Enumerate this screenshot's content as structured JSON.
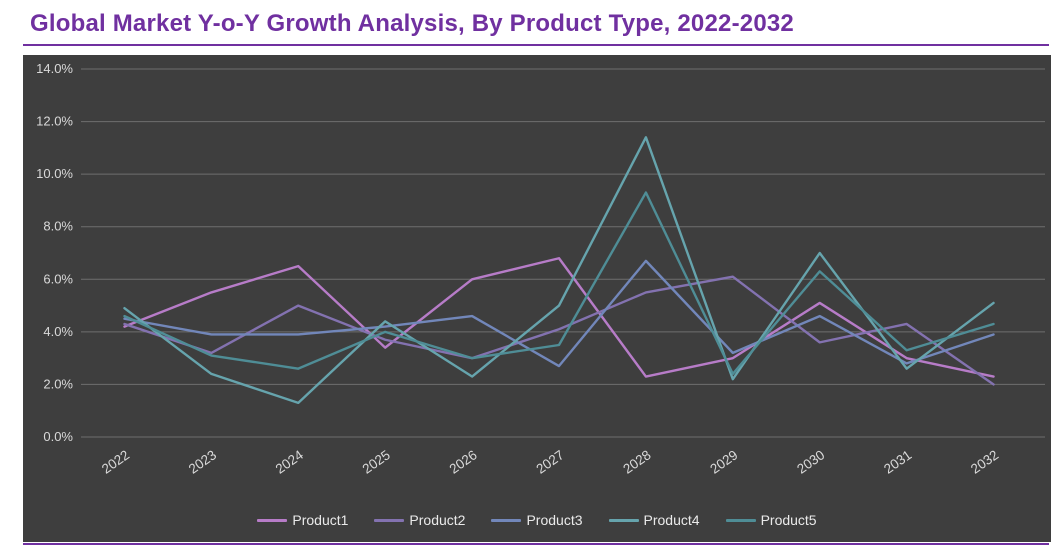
{
  "title": "Global Market Y-o-Y Growth Analysis, By Product Type, 2022-2032",
  "colors": {
    "title": "#7030a0",
    "accent_rule": "#7030a0",
    "panel_bg": "#3e3e3e",
    "grid": "#6e6e6e",
    "axis_text": "#d9d9d9",
    "legend_text": "#eaeaea"
  },
  "chart_data": {
    "type": "line",
    "title": "Global Market Y-o-Y Growth Analysis, By Product Type, 2022-2032",
    "xlabel": "",
    "ylabel": "",
    "categories": [
      "2022",
      "2023",
      "2024",
      "2025",
      "2026",
      "2027",
      "2028",
      "2029",
      "2030",
      "2031",
      "2032"
    ],
    "ylim": [
      0,
      14
    ],
    "ytick_step": 2,
    "ytick_format": "percent_one_decimal",
    "grid": true,
    "legend_position": "bottom",
    "series": [
      {
        "name": "Product1",
        "color": "#b77cc8",
        "values": [
          4.2,
          5.5,
          6.5,
          3.4,
          6.0,
          6.8,
          2.3,
          3.0,
          5.1,
          3.0,
          2.3
        ]
      },
      {
        "name": "Product2",
        "color": "#8372b0",
        "values": [
          4.3,
          3.2,
          5.0,
          3.7,
          3.0,
          4.1,
          5.5,
          6.1,
          3.6,
          4.3,
          2.0
        ]
      },
      {
        "name": "Product3",
        "color": "#7287ba",
        "values": [
          4.5,
          3.9,
          3.9,
          4.2,
          4.6,
          2.7,
          6.7,
          3.2,
          4.6,
          2.8,
          3.9
        ]
      },
      {
        "name": "Product4",
        "color": "#66a4ad",
        "values": [
          4.9,
          2.4,
          1.3,
          4.4,
          2.3,
          5.0,
          11.4,
          2.2,
          7.0,
          2.6,
          5.1
        ]
      },
      {
        "name": "Product5",
        "color": "#4f8d96",
        "values": [
          4.6,
          3.1,
          2.6,
          4.0,
          3.0,
          3.5,
          9.3,
          2.4,
          6.3,
          3.3,
          4.3
        ]
      }
    ]
  }
}
